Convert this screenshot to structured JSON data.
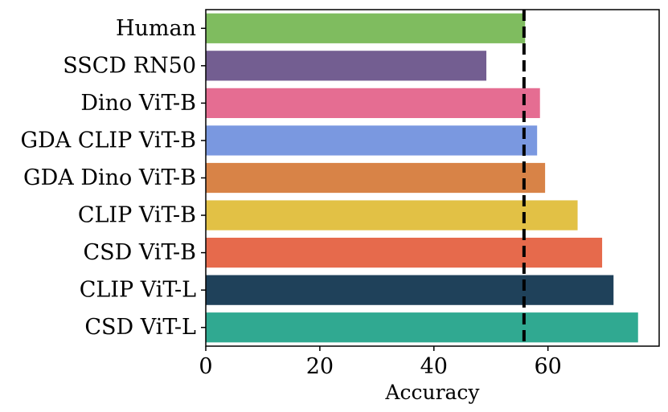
{
  "chart_data": {
    "type": "bar",
    "orientation": "horizontal",
    "title": "",
    "xlabel": "Accuracy",
    "ylabel": "",
    "xlim": [
      0,
      79.5
    ],
    "xticks": [
      0,
      20,
      40,
      60
    ],
    "xtick_labels": [
      "0",
      "20",
      "40",
      "60"
    ],
    "grid": false,
    "categories": [
      "Human",
      "SSCD RN50",
      "Dino ViT-B",
      "GDA CLIP ViT-B",
      "GDA Dino ViT-B",
      "CLIP ViT-B",
      "CSD ViT-B",
      "CLIP ViT-L",
      "CSD ViT-L"
    ],
    "values": [
      56,
      49.2,
      58.6,
      58.1,
      59.5,
      65.2,
      69.5,
      71.5,
      75.8
    ],
    "colors": [
      "#7fbc5f",
      "#735e91",
      "#e56d92",
      "#7a98e0",
      "#d88347",
      "#e2c145",
      "#e66a4c",
      "#1f415a",
      "#30a991"
    ],
    "reference_line": {
      "value": 55.8,
      "style": "dashed",
      "color": "#000000"
    }
  }
}
